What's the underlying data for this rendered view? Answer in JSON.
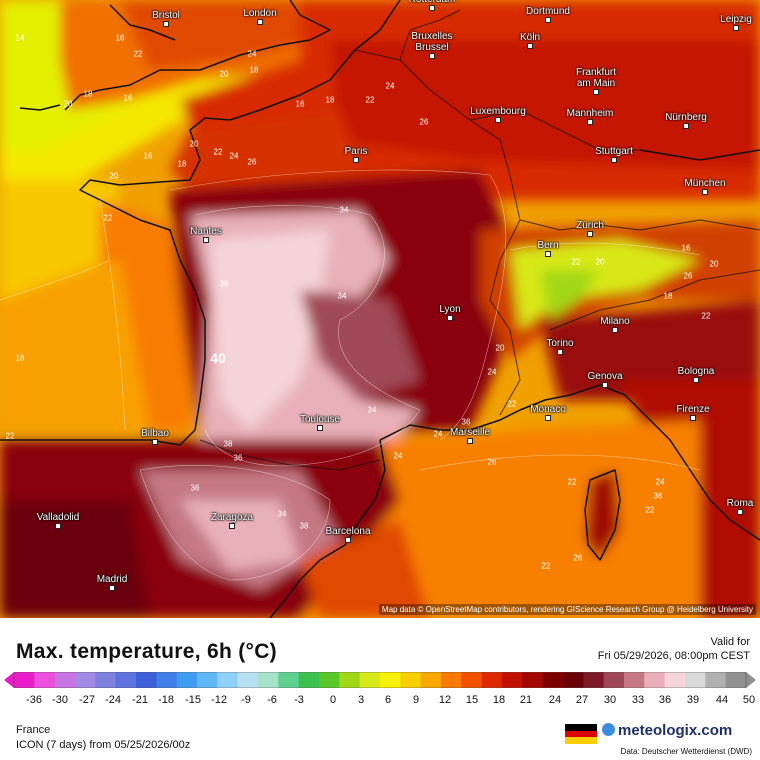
{
  "map": {
    "region_title": "France",
    "attribution": "Map data © OpenStreetMap contributors, rendering GIScience Research Group @ Heidelberg University",
    "cities": [
      {
        "name": "Bristol",
        "pos": "bristol"
      },
      {
        "name": "London",
        "pos": "london"
      },
      {
        "name": "Rotterdam",
        "pos": "rotterdam"
      },
      {
        "name": "Dortmund",
        "pos": "dortmund"
      },
      {
        "name": "Leipzig",
        "pos": "leipzig"
      },
      {
        "name": "Bruxelles\nBrussel",
        "pos": "brussel"
      },
      {
        "name": "Köln",
        "pos": "koln"
      },
      {
        "name": "Frankfurt\nam Main",
        "pos": "frankfurt"
      },
      {
        "name": "Luxembourg",
        "pos": "luxembourg"
      },
      {
        "name": "Mannheim",
        "pos": "mannheim"
      },
      {
        "name": "Nürnberg",
        "pos": "nurnberg"
      },
      {
        "name": "Paris",
        "pos": "paris"
      },
      {
        "name": "Stuttgart",
        "pos": "stuttgart"
      },
      {
        "name": "München",
        "pos": "munchen"
      },
      {
        "name": "Nantes",
        "pos": "nantes"
      },
      {
        "name": "Bern",
        "pos": "bern"
      },
      {
        "name": "Zürich",
        "pos": "zurich"
      },
      {
        "name": "Lyon",
        "pos": "lyon"
      },
      {
        "name": "Milano",
        "pos": "milano"
      },
      {
        "name": "Torino",
        "pos": "torino"
      },
      {
        "name": "Bologna",
        "pos": "bologna"
      },
      {
        "name": "Genova",
        "pos": "genova"
      },
      {
        "name": "Toulouse",
        "pos": "toulouse"
      },
      {
        "name": "Monaco",
        "pos": "monaco"
      },
      {
        "name": "Firenze",
        "pos": "firenze"
      },
      {
        "name": "Bilbao",
        "pos": "bilbao"
      },
      {
        "name": "Marseille",
        "pos": "marseille"
      },
      {
        "name": "Roma",
        "pos": "roma"
      },
      {
        "name": "Valladolid",
        "pos": "valladolid"
      },
      {
        "name": "Zaragoza",
        "pos": "zaragoza"
      },
      {
        "name": "Barcelona",
        "pos": "barcelona"
      },
      {
        "name": "Madrid",
        "pos": "madrid"
      }
    ],
    "contour_labels": [
      {
        "text": "14",
        "pos": "c1"
      },
      {
        "text": "16",
        "pos": "c2"
      },
      {
        "text": "22",
        "pos": "c3"
      },
      {
        "text": "18",
        "pos": "c4"
      },
      {
        "text": "20",
        "pos": "c5"
      },
      {
        "text": "16",
        "pos": "c6"
      },
      {
        "text": "24",
        "pos": "c7"
      },
      {
        "text": "20",
        "pos": "c8"
      },
      {
        "text": "18",
        "pos": "c9"
      },
      {
        "text": "16",
        "pos": "c10"
      },
      {
        "text": "18",
        "pos": "c11"
      },
      {
        "text": "22",
        "pos": "c12"
      },
      {
        "text": "24",
        "pos": "c13"
      },
      {
        "text": "26",
        "pos": "c14"
      },
      {
        "text": "20",
        "pos": "c15"
      },
      {
        "text": "22",
        "pos": "c16"
      },
      {
        "text": "24",
        "pos": "c17"
      },
      {
        "text": "26",
        "pos": "c18"
      },
      {
        "text": "16",
        "pos": "c19"
      },
      {
        "text": "18",
        "pos": "c20"
      },
      {
        "text": "20",
        "pos": "c21"
      },
      {
        "text": "22",
        "pos": "c22"
      },
      {
        "text": "34",
        "pos": "c23"
      },
      {
        "text": "38",
        "pos": "c24"
      },
      {
        "text": "40",
        "pos": "c25"
      },
      {
        "text": "34",
        "pos": "c26"
      },
      {
        "text": "34",
        "pos": "c27"
      },
      {
        "text": "18",
        "pos": "c28"
      },
      {
        "text": "22",
        "pos": "c29"
      },
      {
        "text": "38",
        "pos": "c30"
      },
      {
        "text": "36",
        "pos": "c31"
      },
      {
        "text": "36",
        "pos": "c32"
      },
      {
        "text": "24",
        "pos": "c33"
      },
      {
        "text": "26",
        "pos": "c34"
      },
      {
        "text": "22",
        "pos": "c35"
      },
      {
        "text": "24",
        "pos": "c36"
      },
      {
        "text": "36",
        "pos": "c37"
      },
      {
        "text": "34",
        "pos": "c38"
      },
      {
        "text": "38",
        "pos": "c39"
      },
      {
        "text": "24",
        "pos": "c40"
      },
      {
        "text": "22",
        "pos": "c41"
      },
      {
        "text": "26",
        "pos": "c42"
      },
      {
        "text": "22",
        "pos": "c43"
      },
      {
        "text": "16",
        "pos": "c44"
      },
      {
        "text": "20",
        "pos": "c45"
      },
      {
        "text": "26",
        "pos": "c46"
      },
      {
        "text": "18",
        "pos": "c47"
      },
      {
        "text": "22",
        "pos": "c48"
      },
      {
        "text": "20",
        "pos": "c49"
      },
      {
        "text": "22",
        "pos": "c50"
      },
      {
        "text": "24",
        "pos": "c51"
      },
      {
        "text": "22",
        "pos": "c52"
      },
      {
        "text": "20",
        "pos": "c53"
      },
      {
        "text": "36",
        "pos": "c54"
      }
    ]
  },
  "legend": {
    "title": "Max. temperature, 6h (°C)",
    "valid_label": "Valid for",
    "valid_time": "Fri 05/29/2026, 08:00pm CEST",
    "ticks": [
      "-36",
      "-30",
      "-27",
      "-24",
      "-21",
      "-18",
      "-15",
      "-12",
      "-9",
      "-6",
      "-3",
      "0",
      "3",
      "6",
      "9",
      "12",
      "15",
      "18",
      "21",
      "24",
      "27",
      "30",
      "33",
      "36",
      "39",
      "44",
      "50"
    ],
    "scale_colors": [
      "#e81cc8",
      "#ec4ee0",
      "#c873e4",
      "#a28ae4",
      "#7f80e0",
      "#5f73e0",
      "#3f5fd8",
      "#3f7ee8",
      "#3f9cf0",
      "#5fb8f4",
      "#8fd0f4",
      "#b8e0f0",
      "#a8e0c8",
      "#60d090",
      "#3cc050",
      "#58c828",
      "#a0d818",
      "#d8e818",
      "#f8f000",
      "#f8d000",
      "#f8a800",
      "#f87800",
      "#f05000",
      "#e02800",
      "#c01000",
      "#a00800",
      "#800000",
      "#6a0008",
      "#7c1828",
      "#a04858",
      "#c47884",
      "#e8b0b8",
      "#f4d4d8",
      "#d8d8d8",
      "#b0b0b0",
      "#909090"
    ],
    "region": "France",
    "model": "ICON (7 days) from  05/25/2026/00z",
    "brand": "meteologix.com",
    "source": "Data: Deutscher Wetterdienst (DWD)"
  }
}
